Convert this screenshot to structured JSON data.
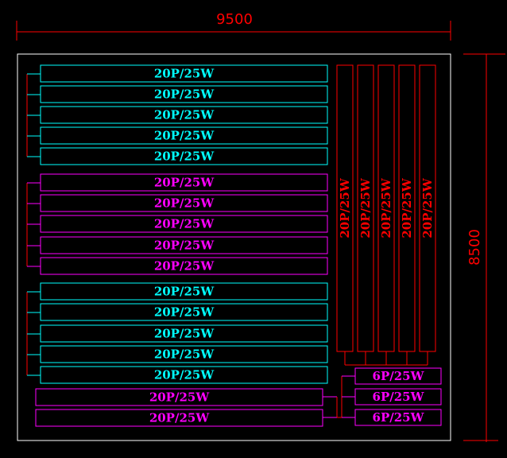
{
  "colors": {
    "background": "#000000",
    "frame": "#ffffff",
    "dimension": "#ff0000",
    "cyan": "#00ffff",
    "magenta": "#ff00ff",
    "red": "#ff0000"
  },
  "dimensions": {
    "width_label": "9500",
    "height_label": "8500"
  },
  "left_groups": [
    {
      "color": "cyan",
      "items": [
        "20P/25W",
        "20P/25W",
        "20P/25W",
        "20P/25W",
        "20P/25W"
      ]
    },
    {
      "color": "magenta",
      "items": [
        "20P/25W",
        "20P/25W",
        "20P/25W",
        "20P/25W",
        "20P/25W"
      ]
    },
    {
      "color": "cyan",
      "items": [
        "20P/25W",
        "20P/25W",
        "20P/25W",
        "20P/25W",
        "20P/25W"
      ]
    }
  ],
  "bottom_items": [
    "20P/25W",
    "20P/25W"
  ],
  "vertical_strips": [
    "20P/25W",
    "20P/25W",
    "20P/25W",
    "20P/25W",
    "20P/25W"
  ],
  "small_items": [
    "6P/25W",
    "6P/25W",
    "6P/25W"
  ]
}
